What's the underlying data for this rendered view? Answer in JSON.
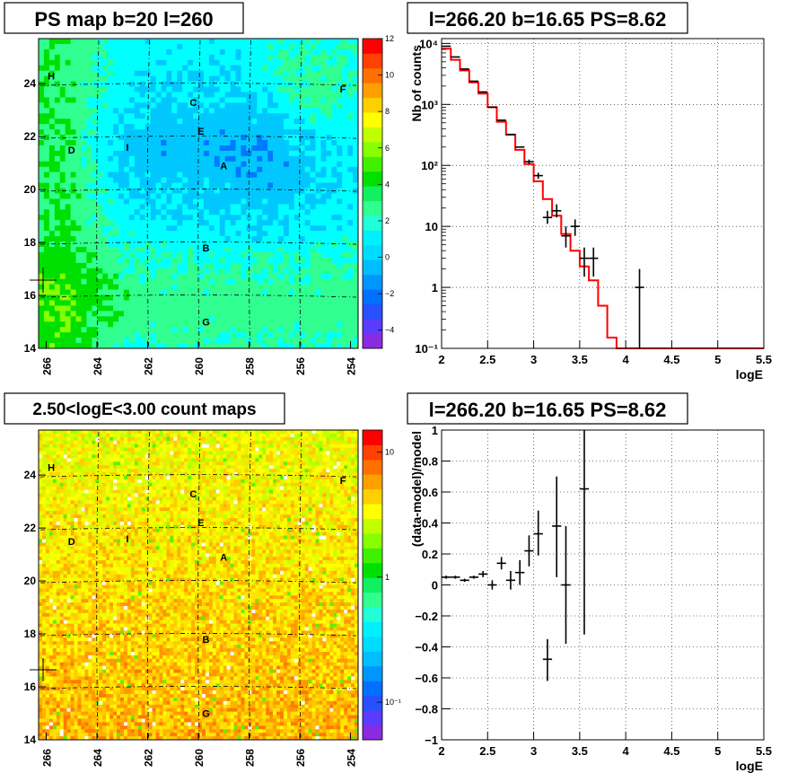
{
  "panels": {
    "ps_map": {
      "title": "PS map b=20 l=260",
      "x_ticks": [
        "266",
        "264",
        "262",
        "260",
        "258",
        "256",
        "254"
      ],
      "y_ticks": [
        "14",
        "16",
        "18",
        "20",
        "22",
        "24"
      ],
      "colorbar_ticks": [
        "12",
        "10",
        "8",
        "6",
        "4",
        "2",
        "0",
        "−2",
        "−4"
      ],
      "labels": [
        "H",
        "F",
        "C",
        "E",
        "D",
        "I",
        "A",
        "B",
        "G"
      ]
    },
    "count_map": {
      "title": "2.50<logE<3.00 count maps",
      "x_ticks": [
        "266",
        "264",
        "262",
        "260",
        "258",
        "256",
        "254"
      ],
      "y_ticks": [
        "14",
        "16",
        "18",
        "20",
        "22",
        "24"
      ],
      "colorbar_ticks": [
        "10",
        "1",
        "10⁻¹"
      ],
      "labels": [
        "H",
        "F",
        "C",
        "E",
        "D",
        "I",
        "A",
        "B",
        "G"
      ]
    },
    "spectrum": {
      "title": "l=266.20 b=16.65 PS=8.62"
    },
    "residual": {
      "title": "l=266.20 b=16.65 PS=8.62"
    }
  },
  "chart_data": [
    {
      "type": "heatmap",
      "title": "PS map b=20 l=260",
      "xlim": [
        266.3,
        253.7
      ],
      "ylim": [
        14,
        25.7
      ],
      "zlim": [
        -5,
        12
      ],
      "palette": [
        "#8a2be2",
        "#3c3cff",
        "#0078ff",
        "#00c8ff",
        "#00ffff",
        "#30ff90",
        "#00e000",
        "#88ff00",
        "#ffff00",
        "#ffc000",
        "#ff6000",
        "#ff0000"
      ],
      "source_labels": [
        {
          "name": "H",
          "l": 265.8,
          "b": 24.3
        },
        {
          "name": "F",
          "l": 254.3,
          "b": 23.8
        },
        {
          "name": "C",
          "l": 260.2,
          "b": 23.3
        },
        {
          "name": "E",
          "l": 259.9,
          "b": 22.2
        },
        {
          "name": "D",
          "l": 265.0,
          "b": 21.5
        },
        {
          "name": "I",
          "l": 262.8,
          "b": 21.6
        },
        {
          "name": "A",
          "l": 259.0,
          "b": 20.9
        },
        {
          "name": "B",
          "l": 259.7,
          "b": 17.8
        },
        {
          "name": "G",
          "l": 259.7,
          "b": 15.0
        }
      ]
    },
    {
      "type": "heatmap",
      "title": "2.50<logE<3.00 count maps",
      "xlim": [
        266.3,
        253.7
      ],
      "ylim": [
        14,
        25.7
      ],
      "zscale": "log",
      "zlim": [
        0.05,
        15
      ]
    },
    {
      "type": "line",
      "title": "l=266.20 b=16.65 PS=8.62",
      "xlabel": "logE",
      "ylabel": "Nb of counts",
      "xlim": [
        2,
        5.5
      ],
      "ylim": [
        0.1,
        12000
      ],
      "yscale": "log",
      "grid": true,
      "x_ticks": [
        "2",
        "2.5",
        "3",
        "3.5",
        "4",
        "4.5",
        "5",
        "5.5"
      ],
      "y_ticks": [
        "10⁻¹",
        "1",
        "10",
        "10²",
        "10³",
        "10⁴"
      ],
      "data_points": [
        {
          "x": 2.05,
          "y": 9000,
          "ylo": 9000,
          "yhi": 9000
        },
        {
          "x": 2.15,
          "y": 6000,
          "ylo": 6000,
          "yhi": 6000
        },
        {
          "x": 2.25,
          "y": 3800,
          "ylo": 3800,
          "yhi": 3800
        },
        {
          "x": 2.35,
          "y": 2400,
          "ylo": 2400,
          "yhi": 2400
        },
        {
          "x": 2.45,
          "y": 1600,
          "ylo": 1600,
          "yhi": 1600
        },
        {
          "x": 2.55,
          "y": 900,
          "ylo": 900,
          "yhi": 900
        },
        {
          "x": 2.65,
          "y": 550,
          "ylo": 550,
          "yhi": 550
        },
        {
          "x": 2.75,
          "y": 320,
          "ylo": 320,
          "yhi": 320
        },
        {
          "x": 2.85,
          "y": 200,
          "ylo": 200,
          "yhi": 200
        },
        {
          "x": 2.95,
          "y": 115,
          "ylo": 105,
          "yhi": 125
        },
        {
          "x": 3.05,
          "y": 68,
          "ylo": 60,
          "yhi": 76
        },
        {
          "x": 3.15,
          "y": 14,
          "ylo": 11,
          "yhi": 18
        },
        {
          "x": 3.25,
          "y": 18,
          "ylo": 14,
          "yhi": 23
        },
        {
          "x": 3.35,
          "y": 7,
          "ylo": 4.5,
          "yhi": 10
        },
        {
          "x": 3.45,
          "y": 10,
          "ylo": 7,
          "yhi": 13
        },
        {
          "x": 3.55,
          "y": 3,
          "ylo": 1.5,
          "yhi": 4.5
        },
        {
          "x": 3.65,
          "y": 3,
          "ylo": 1.5,
          "yhi": 4.5
        },
        {
          "x": 4.15,
          "y": 1,
          "ylo": 0.1,
          "yhi": 2
        }
      ],
      "model_step": {
        "bin_edges": [
          2.0,
          2.1,
          2.2,
          2.3,
          2.4,
          2.5,
          2.6,
          2.7,
          2.8,
          2.9,
          3.0,
          3.1,
          3.2,
          3.3,
          3.4,
          3.5,
          3.6,
          3.7,
          3.8,
          3.9,
          4.0,
          5.5
        ],
        "values": [
          8200,
          5400,
          3600,
          2300,
          1500,
          900,
          520,
          320,
          180,
          105,
          55,
          28,
          15,
          7.5,
          4,
          2.2,
          1.3,
          0.5,
          0.15,
          0.1,
          0.1
        ],
        "color": "#ff0000"
      }
    },
    {
      "type": "scatter",
      "title": "l=266.20 b=16.65 PS=8.62",
      "xlabel": "logE",
      "ylabel": "(data-model)/model",
      "xlim": [
        2,
        5.5
      ],
      "ylim": [
        -1,
        1
      ],
      "grid": true,
      "x_ticks": [
        "2",
        "2.5",
        "3",
        "3.5",
        "4",
        "4.5",
        "5",
        "5.5"
      ],
      "y_ticks": [
        "−1",
        "−0.8",
        "−0.6",
        "−0.4",
        "−0.2",
        "0",
        "0.2",
        "0.4",
        "0.6",
        "0.8",
        "1"
      ],
      "points": [
        {
          "x": 2.05,
          "y": 0.05,
          "ylo": 0.04,
          "yhi": 0.06
        },
        {
          "x": 2.15,
          "y": 0.05,
          "ylo": 0.04,
          "yhi": 0.06
        },
        {
          "x": 2.25,
          "y": 0.03,
          "ylo": 0.02,
          "yhi": 0.04
        },
        {
          "x": 2.35,
          "y": 0.05,
          "ylo": 0.04,
          "yhi": 0.06
        },
        {
          "x": 2.45,
          "y": 0.07,
          "ylo": 0.05,
          "yhi": 0.09
        },
        {
          "x": 2.55,
          "y": 0.0,
          "ylo": -0.03,
          "yhi": 0.03
        },
        {
          "x": 2.65,
          "y": 0.14,
          "ylo": 0.1,
          "yhi": 0.18
        },
        {
          "x": 2.75,
          "y": 0.03,
          "ylo": -0.03,
          "yhi": 0.09
        },
        {
          "x": 2.85,
          "y": 0.08,
          "ylo": 0.0,
          "yhi": 0.16
        },
        {
          "x": 2.95,
          "y": 0.22,
          "ylo": 0.12,
          "yhi": 0.32
        },
        {
          "x": 3.05,
          "y": 0.33,
          "ylo": 0.19,
          "yhi": 0.48
        },
        {
          "x": 3.15,
          "y": -0.48,
          "ylo": -0.62,
          "yhi": -0.35
        },
        {
          "x": 3.25,
          "y": 0.38,
          "ylo": 0.05,
          "yhi": 0.7
        },
        {
          "x": 3.35,
          "y": 0.0,
          "ylo": -0.38,
          "yhi": 0.38
        },
        {
          "x": 3.55,
          "y": 0.62,
          "ylo": -0.32,
          "yhi": 1.0
        }
      ]
    }
  ]
}
